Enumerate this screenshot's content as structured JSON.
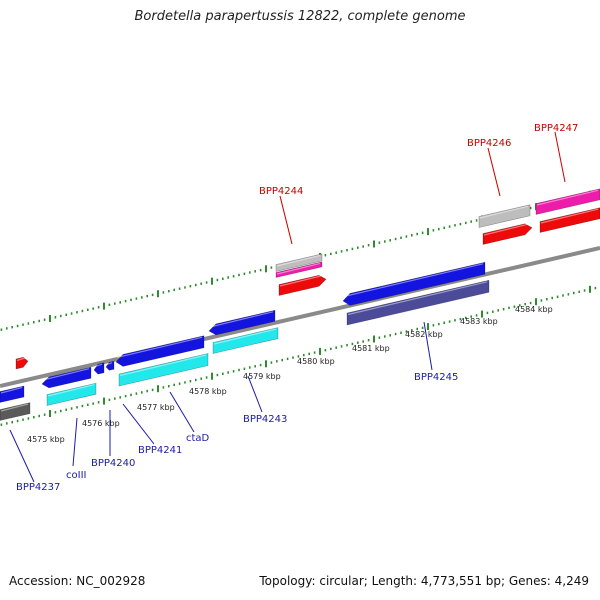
{
  "title": "Bordetella parapertussis 12822, complete genome",
  "footer": {
    "accession": "Accession: NC_002928",
    "info": "Topology: circular; Length: 4,773,551 bp; Genes: 4,249"
  },
  "colors": {
    "backbone": "#8a8a8a",
    "tick": "#2e8b2e",
    "label_blue": "#1c1ca8",
    "label_red": "#cc0000",
    "blue": "#1414e0",
    "cyan": "#22e8ec",
    "slate": "#4b4b9a",
    "grey": "#5a5a5a",
    "light_grey": "#bdbdbd",
    "red": "#ee0a0a",
    "magenta": "#ee1caa"
  },
  "kbp_markers": [
    "4575 kbp",
    "4576 kbp",
    "4577 kbp",
    "4578 kbp",
    "4579 kbp",
    "4580 kbp",
    "4581 kbp",
    "4582 kbp",
    "4583 kbp",
    "4584 kbp"
  ],
  "gene_labels": [
    {
      "name": "BPP4237",
      "color": "blue"
    },
    {
      "name": "coIII",
      "color": "blue"
    },
    {
      "name": "BPP4240",
      "color": "blue"
    },
    {
      "name": "BPP4241",
      "color": "blue"
    },
    {
      "name": "ctaD",
      "color": "blue"
    },
    {
      "name": "BPP4243",
      "color": "blue"
    },
    {
      "name": "BPP4245",
      "color": "blue"
    },
    {
      "name": "BPP4244",
      "color": "red"
    },
    {
      "name": "BPP4246",
      "color": "red"
    },
    {
      "name": "BPP4247",
      "color": "red"
    }
  ]
}
